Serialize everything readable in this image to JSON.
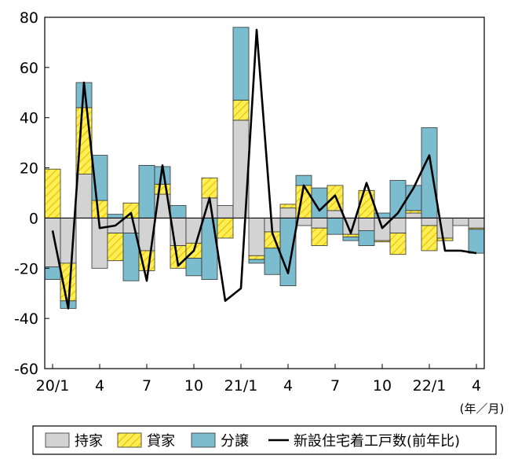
{
  "chart_data": {
    "type": "bar",
    "stacked": true,
    "x": [
      "20/1",
      "20/2",
      "20/3",
      "20/4",
      "20/5",
      "20/6",
      "20/7",
      "20/8",
      "20/9",
      "20/10",
      "20/11",
      "20/12",
      "21/1",
      "21/2",
      "21/3",
      "21/4",
      "21/5",
      "21/6",
      "21/7",
      "21/8",
      "21/9",
      "21/10",
      "21/11",
      "21/12",
      "22/1",
      "22/2",
      "22/3",
      "22/4"
    ],
    "x_tick_labels": [
      "20/1",
      "4",
      "7",
      "10",
      "21/1",
      "4",
      "7",
      "10",
      "22/1",
      "4"
    ],
    "x_tick_indices": [
      0,
      3,
      6,
      9,
      12,
      15,
      18,
      21,
      24,
      27
    ],
    "x_unit": "(年／月)",
    "ylim": [
      -60,
      80
    ],
    "yticks": [
      -60,
      -40,
      -20,
      0,
      20,
      40,
      60,
      80
    ],
    "grid": false,
    "legend_position": "bottom",
    "series": [
      {
        "name": "持家",
        "kind": "bar",
        "color": "#d3d3d3",
        "values": [
          -19.5,
          -18,
          17.5,
          -20,
          -6,
          -6,
          -13,
          9.5,
          -11,
          -10,
          8,
          5,
          39,
          -15,
          -5.5,
          4,
          -3,
          -4,
          3,
          -6.5,
          -5,
          -9,
          -6,
          2,
          -3,
          -8,
          -3,
          -4
        ]
      },
      {
        "name": "貸家",
        "kind": "bar",
        "color": "#ffee55",
        "hatch": true,
        "values": [
          19.5,
          -15,
          26.5,
          7,
          -11,
          6,
          -8,
          4,
          -9,
          -6,
          8,
          -8,
          8,
          -1.5,
          -6.5,
          1.5,
          13,
          -7,
          10,
          -1,
          11,
          -0.5,
          -8.5,
          1,
          -10,
          -1,
          0,
          -0.5
        ]
      },
      {
        "name": "分譲",
        "kind": "bar",
        "color": "#7bbccf",
        "values": [
          -5,
          -3,
          10,
          18,
          1.5,
          -19,
          21,
          7,
          5,
          -7,
          -24.5,
          0,
          29,
          -1.5,
          -10.5,
          -27,
          4,
          12,
          -6.5,
          -1.5,
          -6,
          2,
          15,
          10,
          36,
          0,
          0,
          -9.5
        ]
      },
      {
        "name": "新設住宅着工戸数(前年比)",
        "kind": "line",
        "color": "#000000",
        "values": [
          -5,
          -36,
          54,
          -4,
          -3,
          2,
          -25,
          21,
          -19,
          -13,
          8,
          -33,
          -28,
          75,
          -6,
          -22,
          13,
          3,
          9,
          -6,
          14,
          -4,
          2,
          12,
          25,
          -13,
          -13,
          -14
        ]
      }
    ]
  }
}
